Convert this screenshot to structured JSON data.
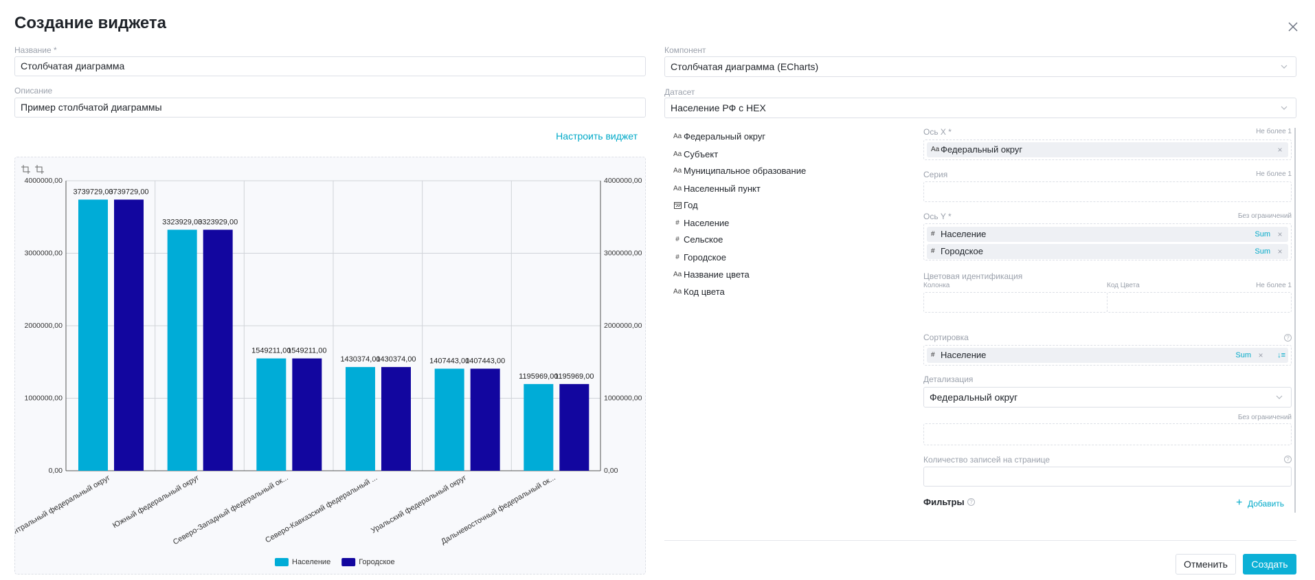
{
  "header": {
    "title": "Создание виджета"
  },
  "form": {
    "name": {
      "label": "Название *",
      "value": "Столбчатая диаграмма"
    },
    "description": {
      "label": "Описание",
      "value": "Пример столбчатой диаграммы"
    },
    "configure": "Настроить виджет",
    "component": {
      "label": "Компонент",
      "value": "Столбчатая диаграмма (ECharts)"
    },
    "dataset": {
      "label": "Датасет",
      "value": "Население РФ с HEX"
    }
  },
  "fields": [
    {
      "icon": "Aa",
      "name": "Федеральный округ"
    },
    {
      "icon": "Aa",
      "name": "Субъект"
    },
    {
      "icon": "Aa",
      "name": "Муниципальное образование"
    },
    {
      "icon": "Aa",
      "name": "Населенный пункт"
    },
    {
      "name": "Год"
    },
    {
      "icon": "#",
      "name": "Население"
    },
    {
      "icon": "#",
      "name": "Сельское"
    },
    {
      "icon": "#",
      "name": "Городское"
    },
    {
      "icon": "Aa",
      "name": "Название цвета"
    },
    {
      "icon": "Aa",
      "name": "Код цвета"
    }
  ],
  "config": {
    "x_axis": {
      "label": "Ось X *",
      "limit": "Не более 1",
      "items": [
        {
          "icon": "Aa",
          "name": "Федеральный округ"
        }
      ]
    },
    "series": {
      "label": "Серия",
      "limit": "Не более 1"
    },
    "y_axis": {
      "label": "Ось Y *",
      "limit": "Без ограничений",
      "items": [
        {
          "icon": "#",
          "name": "Население",
          "agg": "Sum"
        },
        {
          "icon": "#",
          "name": "Городское",
          "agg": "Sum"
        }
      ]
    },
    "color": {
      "label": "Цветовая идентификация",
      "column": "Колонка",
      "code": "Код Цвета",
      "limit": "Не более 1"
    },
    "sorting": {
      "label": "Сортировка",
      "items": [
        {
          "icon": "#",
          "name": "Население",
          "agg": "Sum"
        }
      ]
    },
    "detail": {
      "label": "Детализация",
      "value": "Федеральный округ",
      "limit": "Без ограничений"
    },
    "page_size": {
      "label": "Количество записей на странице"
    },
    "filters": {
      "label": "Фильтры",
      "add": "Добавить"
    }
  },
  "buttons": {
    "cancel": "Отменить",
    "create": "Создать"
  },
  "chart_data": {
    "type": "bar",
    "categories": [
      "Центральный федеральный округ",
      "Южный федеральный округ",
      "Северо-Западный федеральный ок...",
      "Северо-Кавказский федеральный ...",
      "Уральский федеральный округ",
      "Дальневосточный федеральный ок..."
    ],
    "series": [
      {
        "name": "Население",
        "color": "#00acd7",
        "values": [
          3739729,
          3323929,
          1549211,
          1430374,
          1407443,
          1195969
        ],
        "value_labels": [
          "3739729,00",
          "3323929,00",
          "1549211,00",
          "1430374,00",
          "1407443,00",
          "1195969,00"
        ]
      },
      {
        "name": "Городское",
        "color": "#12069f",
        "values": [
          3739729,
          3323929,
          1549211,
          1430374,
          1407443,
          1195969
        ],
        "value_labels": [
          "3739729,00",
          "3323929,00",
          "1549211,00",
          "1430374,00",
          "1407443,00",
          "1195969,00"
        ]
      }
    ],
    "ylim": [
      0,
      4000000
    ],
    "yticks": [
      {
        "value": 0,
        "label": "0,00"
      },
      {
        "value": 1000000,
        "label": "1000000,00"
      },
      {
        "value": 2000000,
        "label": "2000000,00"
      },
      {
        "value": 3000000,
        "label": "3000000,00"
      },
      {
        "value": 4000000,
        "label": "4000000,00"
      }
    ],
    "grid": true,
    "legend": "bottom"
  }
}
